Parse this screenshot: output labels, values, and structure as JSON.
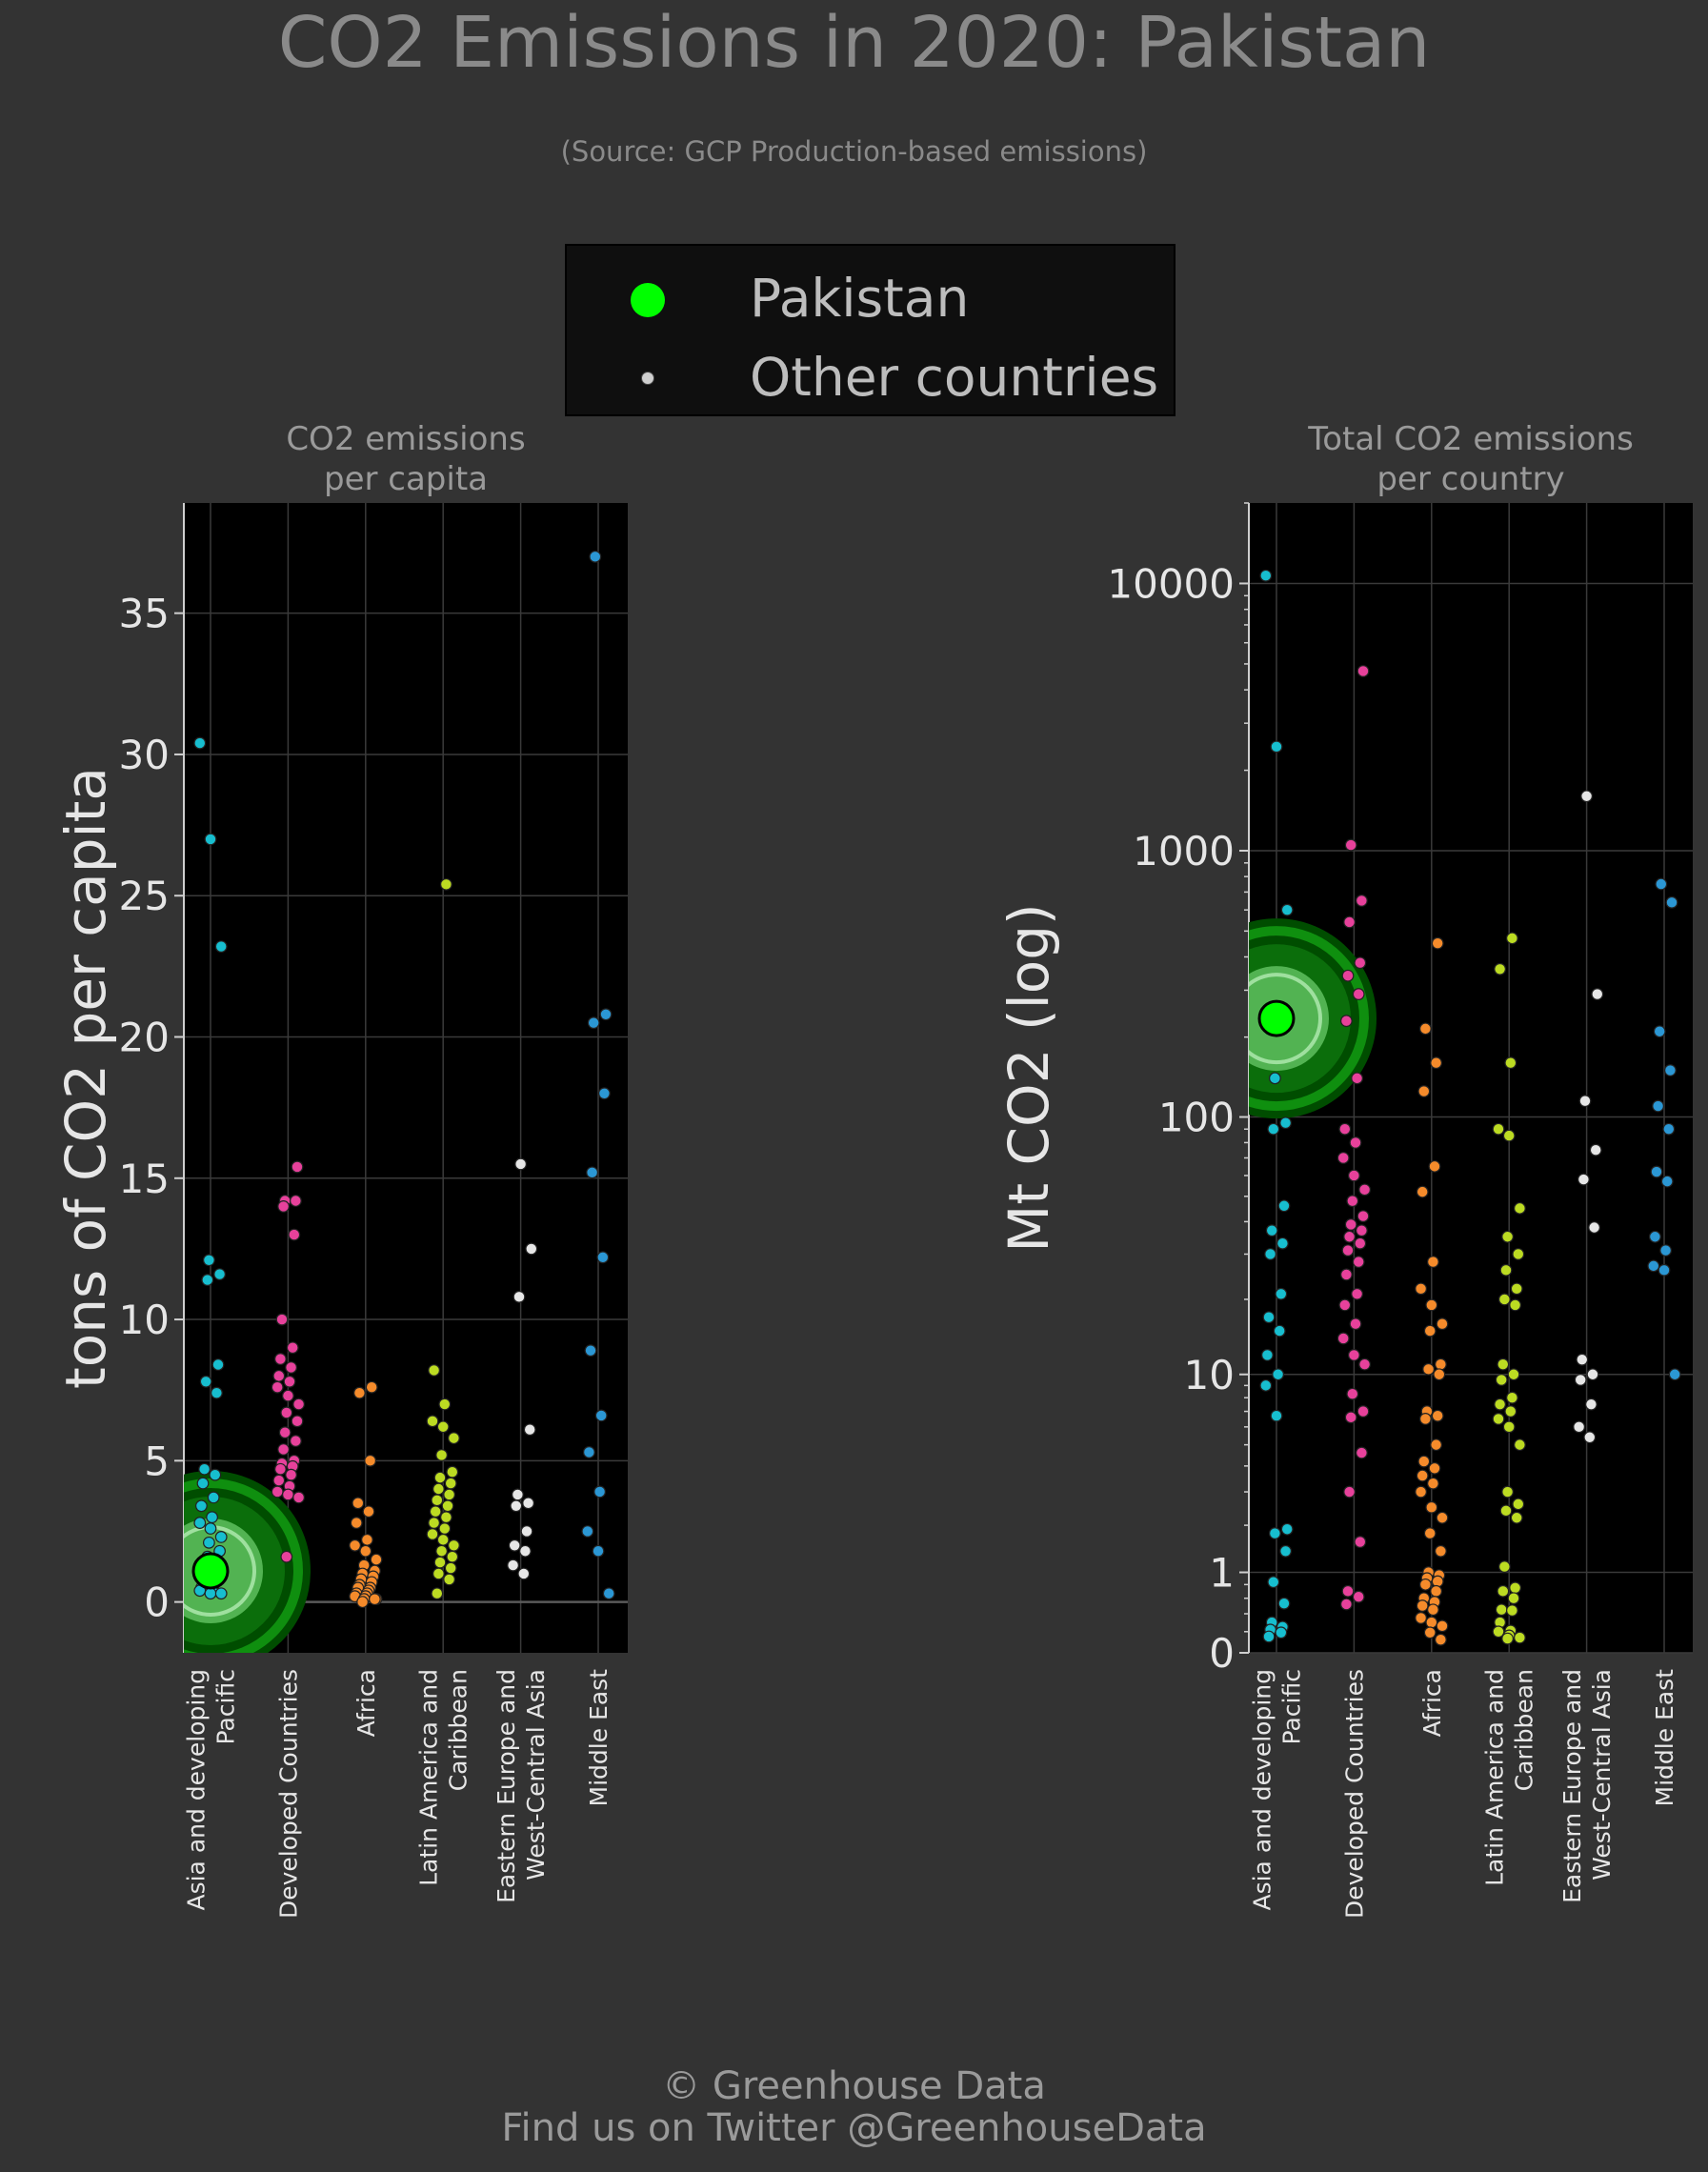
{
  "title": "CO2 Emissions in 2020: Pakistan",
  "subtitle": "(Source: GCP Production-based emissions)",
  "legend": {
    "highlight_label": "Pakistan",
    "other_label": "Other countries",
    "highlight_color": "#00ff00",
    "other_color": "#cfcfcf"
  },
  "footer": {
    "line1": "© Greenhouse Data",
    "line2": "Find us on Twitter @GreenhouseData"
  },
  "colors": {
    "Asia and developing Pacific": "#17becf",
    "Developed Countries": "#e7419b",
    "Africa": "#f58b2b",
    "Latin America and Caribbean": "#bcdb22",
    "Eastern Europe and West-Central Asia": "#e6e6e6",
    "Middle East": "#2b97d4"
  },
  "chart_data": [
    {
      "type": "scatter",
      "title": "CO2 emissions\nper capita",
      "ylabel": "tons of CO2 per capita",
      "ylim": [
        -1.8,
        38.9
      ],
      "yticks": [
        0,
        5,
        10,
        15,
        20,
        25,
        30,
        35
      ],
      "grid": true,
      "categories": [
        "Asia and developing\nPacific",
        "Developed Countries",
        "Africa",
        "Latin America and\nCaribbean",
        "Eastern Europe and\nWest-Central Asia",
        "Middle East"
      ],
      "highlight": {
        "name": "Pakistan",
        "category_index": 0,
        "value": 1.1
      },
      "series": [
        {
          "name": "Asia and developing Pacific",
          "values": [
            30.4,
            27.0,
            23.2,
            12.1,
            11.6,
            11.4,
            8.4,
            7.8,
            7.4,
            4.7,
            4.5,
            4.2,
            3.7,
            3.4,
            3.0,
            2.8,
            2.6,
            2.3,
            2.1,
            1.8,
            1.6,
            1.4,
            1.2,
            1.0,
            0.9,
            0.8,
            0.7,
            0.6,
            0.5,
            0.4,
            0.4,
            0.3,
            0.3
          ]
        },
        {
          "name": "Developed Countries",
          "values": [
            15.4,
            14.2,
            14.2,
            14.0,
            13.0,
            10.0,
            9.0,
            8.6,
            8.3,
            8.0,
            7.8,
            7.6,
            7.3,
            7.0,
            6.7,
            6.4,
            6.0,
            5.7,
            5.4,
            5.0,
            4.9,
            4.8,
            4.7,
            4.5,
            4.3,
            4.1,
            3.9,
            3.8,
            3.7,
            1.6
          ]
        },
        {
          "name": "Africa",
          "values": [
            7.6,
            7.4,
            5.0,
            3.5,
            3.2,
            2.8,
            2.2,
            2.0,
            1.8,
            1.5,
            1.3,
            1.1,
            1.0,
            0.9,
            0.8,
            0.7,
            0.6,
            0.5,
            0.5,
            0.4,
            0.3,
            0.3,
            0.2,
            0.2,
            0.1,
            0.1,
            0.1,
            0.0
          ]
        },
        {
          "name": "Latin America and Caribbean",
          "values": [
            25.4,
            8.2,
            7.0,
            6.4,
            6.2,
            5.8,
            5.2,
            4.6,
            4.4,
            4.2,
            4.0,
            3.8,
            3.6,
            3.4,
            3.2,
            3.0,
            2.8,
            2.6,
            2.4,
            2.2,
            2.0,
            1.8,
            1.6,
            1.4,
            1.2,
            1.0,
            0.8,
            0.3
          ]
        },
        {
          "name": "Eastern Europe and West-Central Asia",
          "values": [
            15.5,
            12.5,
            10.8,
            6.1,
            3.8,
            3.5,
            3.4,
            2.5,
            2.0,
            1.8,
            1.3,
            1.0
          ]
        },
        {
          "name": "Middle East",
          "values": [
            37.0,
            20.8,
            20.5,
            18.0,
            15.2,
            12.2,
            8.9,
            6.6,
            5.3,
            3.9,
            2.5,
            1.8,
            0.3
          ]
        }
      ]
    },
    {
      "type": "scatter",
      "title": "Total CO2 emissions\nper country",
      "ylabel": "Mt CO2 (log)",
      "ylog": true,
      "ylim": [
        0,
        20000
      ],
      "yticks": [
        0,
        1,
        10,
        100,
        1000,
        10000
      ],
      "grid": true,
      "categories": [
        "Asia and developing\nPacific",
        "Developed Countries",
        "Africa",
        "Latin America and\nCaribbean",
        "Eastern Europe and\nWest-Central Asia",
        "Middle East"
      ],
      "highlight": {
        "name": "Pakistan",
        "category_index": 0,
        "value": 235
      },
      "series": [
        {
          "name": "Asia and developing Pacific",
          "values": [
            10700,
            2450,
            600,
            140,
            95,
            90,
            46,
            37,
            33,
            30,
            21,
            17,
            15,
            12,
            10,
            9,
            6.7,
            1.9,
            1.8,
            1.4,
            0.84,
            0.53,
            0.3,
            0.25,
            0.22,
            0.19,
            0.15
          ]
        },
        {
          "name": "Developed Countries",
          "values": [
            4700,
            1050,
            650,
            540,
            380,
            340,
            290,
            230,
            140,
            90,
            80,
            70,
            60,
            53,
            48,
            42,
            39,
            37,
            35,
            33,
            31,
            28,
            25,
            21,
            19,
            16,
            14,
            12,
            11,
            8.3,
            7,
            6.6,
            4.6,
            3,
            1.6,
            0.7,
            0.62,
            0.52
          ]
        },
        {
          "name": "Africa",
          "values": [
            450,
            215,
            160,
            125,
            65,
            52,
            28,
            22,
            19,
            16,
            15,
            11,
            10.5,
            10,
            7,
            6.7,
            6.5,
            5,
            4.2,
            3.9,
            3.6,
            3.3,
            3,
            2.5,
            2.2,
            1.8,
            1.4,
            1.0,
            0.95,
            0.9,
            0.85,
            0.8,
            0.7,
            0.6,
            0.55,
            0.5,
            0.45,
            0.35,
            0.3,
            0.26,
            0.19,
            0.12
          ]
        },
        {
          "name": "Latin America and Caribbean",
          "values": [
            470,
            360,
            160,
            90,
            85,
            45,
            35,
            30,
            26,
            22,
            20,
            19,
            11,
            10,
            9.5,
            8,
            7.5,
            7,
            6.5,
            6,
            5,
            3,
            2.6,
            2.4,
            2.2,
            1.1,
            0.75,
            0.7,
            0.6,
            0.45,
            0.44,
            0.3,
            0.21,
            0.2,
            0.16,
            0.14,
            0.13
          ]
        },
        {
          "name": "Eastern Europe and West-Central Asia",
          "values": [
            1600,
            290,
            115,
            75,
            58,
            38,
            11.5,
            10,
            9.5,
            7.5,
            6,
            5.4
          ]
        },
        {
          "name": "Middle East",
          "values": [
            750,
            640,
            210,
            150,
            110,
            90,
            62,
            57,
            35,
            31,
            27,
            26,
            10
          ]
        }
      ]
    }
  ]
}
